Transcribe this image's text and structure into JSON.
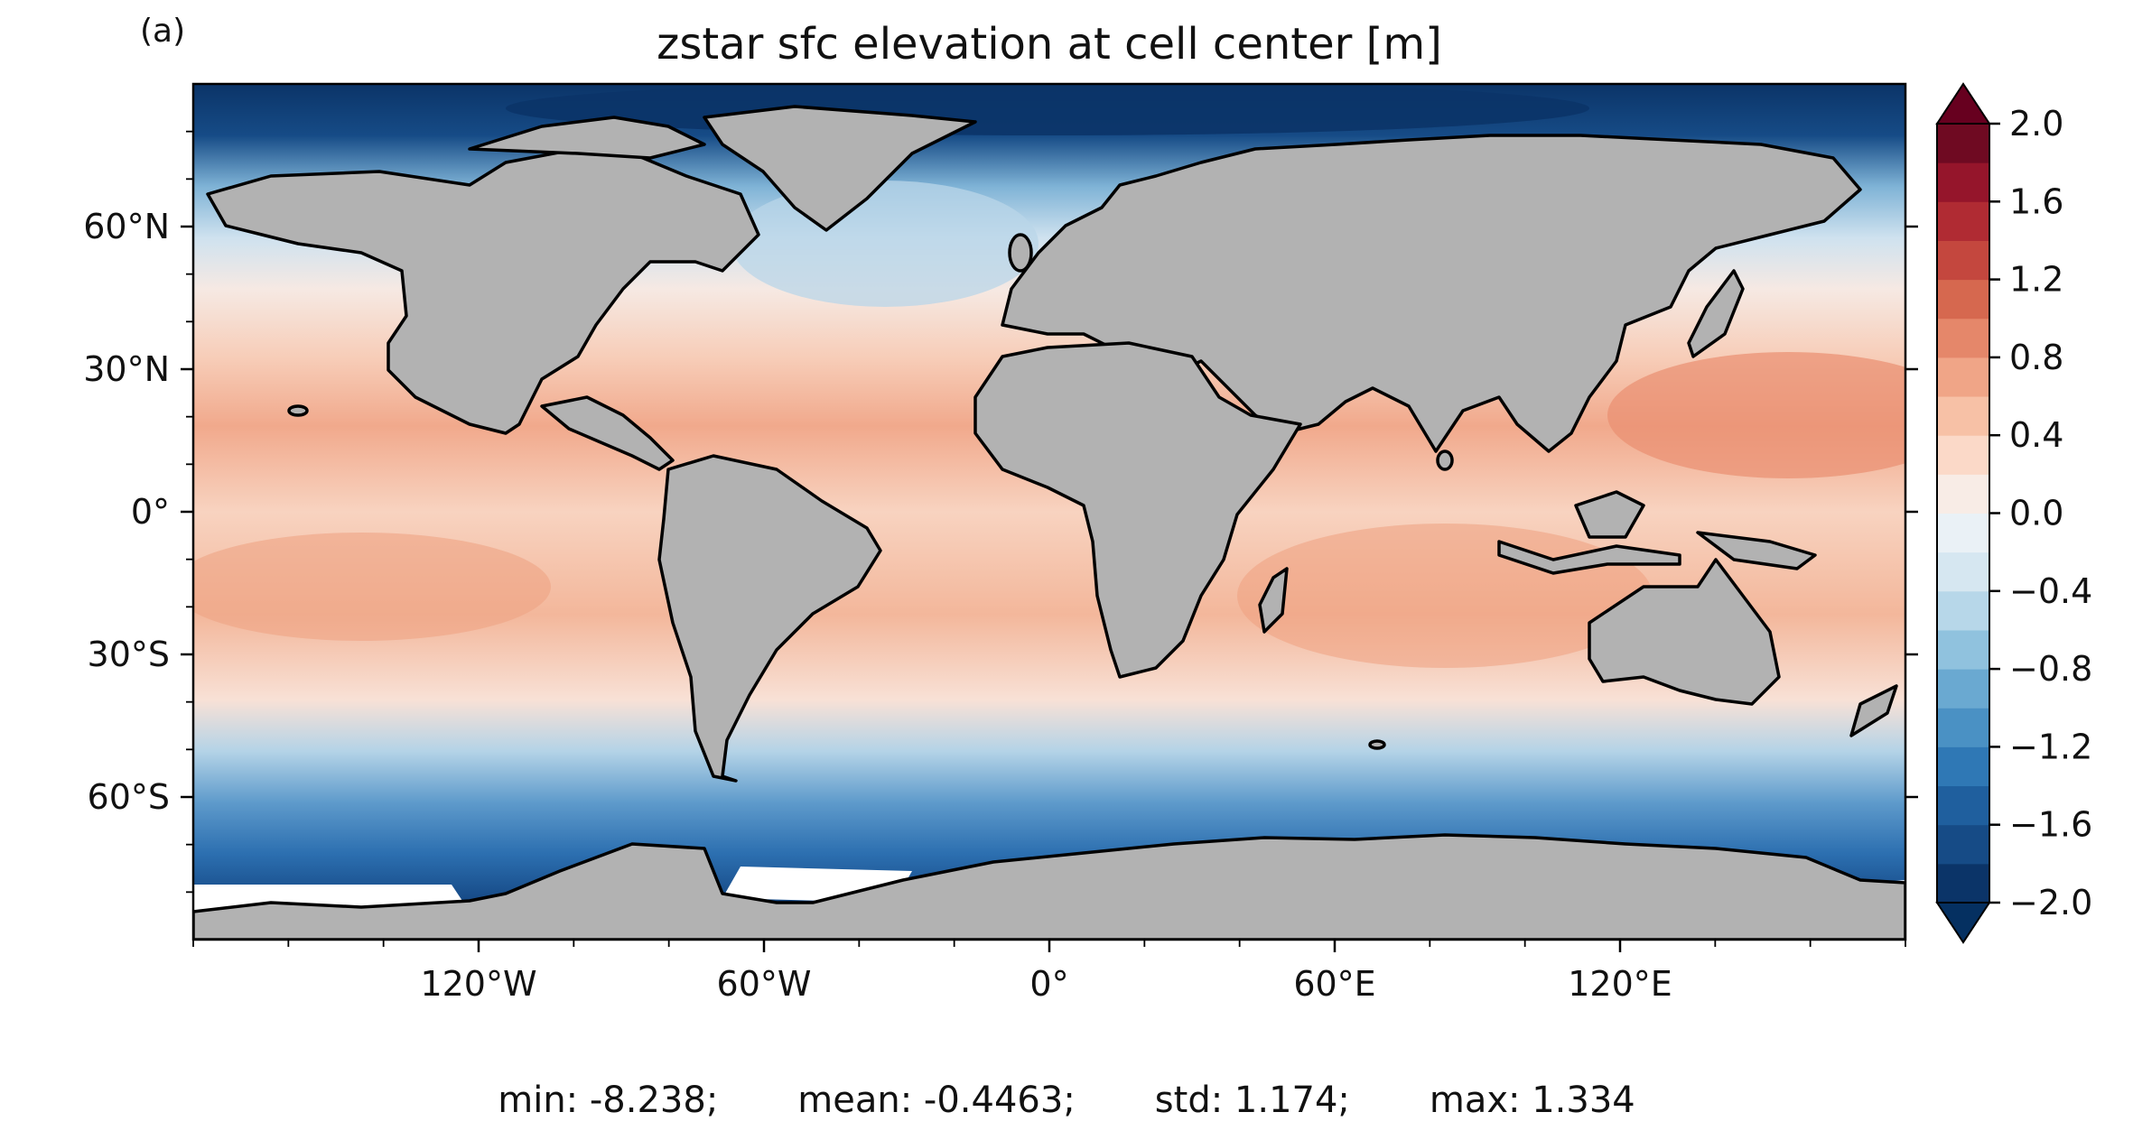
{
  "panel_label": "(a)",
  "title": "zstar sfc elevation at cell center [m]",
  "x_ticks": [
    "120°W",
    "60°W",
    "0°",
    "60°E",
    "120°E"
  ],
  "y_ticks": [
    "60°N",
    "30°N",
    "0°",
    "30°S",
    "60°S"
  ],
  "colorbar": {
    "ticks": [
      "2.0",
      "1.6",
      "1.2",
      "0.8",
      "0.4",
      "0.0",
      "−0.4",
      "−0.8",
      "−1.2",
      "−1.6",
      "−2.0"
    ],
    "min": -2.0,
    "max": 2.0,
    "step": 0.2,
    "extend": "both",
    "colormap": "RdBu_r"
  },
  "stats": {
    "min": "min: -8.238;",
    "mean": "mean: -0.4463;",
    "std": "std: 1.174;",
    "max": "max: 1.334"
  },
  "colors": {
    "land": "#b2b2b2",
    "coast": "#000000"
  },
  "chart_data": {
    "type": "heatmap",
    "title": "zstar sfc elevation at cell center [m]",
    "projection": "PlateCarree",
    "xlim": [
      -180,
      180
    ],
    "ylim": [
      -90,
      90
    ],
    "zones": [
      {
        "lat": 85,
        "value": -2.0
      },
      {
        "lat": 72,
        "value": -1.6
      },
      {
        "lat": 62,
        "value": -0.6
      },
      {
        "lat": 50,
        "value": 0.1
      },
      {
        "lat": 35,
        "value": 0.4
      },
      {
        "lat": 20,
        "value": 0.6
      },
      {
        "lat": 0,
        "value": 0.4
      },
      {
        "lat": -20,
        "value": 0.6
      },
      {
        "lat": -40,
        "value": 0.2
      },
      {
        "lat": -50,
        "value": -0.6
      },
      {
        "lat": -58,
        "value": -1.2
      },
      {
        "lat": -65,
        "value": -1.6
      },
      {
        "lat": -72,
        "value": -2.0
      }
    ]
  }
}
